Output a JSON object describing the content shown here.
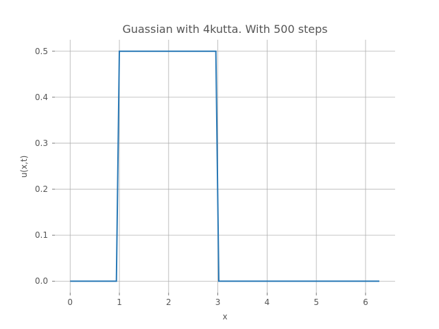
{
  "chart_data": {
    "type": "line",
    "title": "Guassian with 4kutta. With 500 steps",
    "xlabel": "x",
    "ylabel": "u(x,t)",
    "xlim": [
      -0.31,
      6.6
    ],
    "ylim": [
      -0.025,
      0.525
    ],
    "x_ticks": [
      0,
      1,
      2,
      3,
      4,
      5,
      6
    ],
    "y_ticks": [
      0.0,
      0.1,
      0.2,
      0.3,
      0.4,
      0.5
    ],
    "x_tick_labels": [
      "0",
      "1",
      "2",
      "3",
      "4",
      "5",
      "6"
    ],
    "y_tick_labels": [
      "0.0",
      "0.1",
      "0.2",
      "0.3",
      "0.4",
      "0.5"
    ],
    "grid": true,
    "series": [
      {
        "color": "#2878b5",
        "x": [
          0.0,
          0.94,
          1.0,
          2.96,
          3.02,
          6.28
        ],
        "y": [
          0.0,
          0.0,
          0.5,
          0.5,
          0.0,
          0.0
        ]
      }
    ]
  }
}
